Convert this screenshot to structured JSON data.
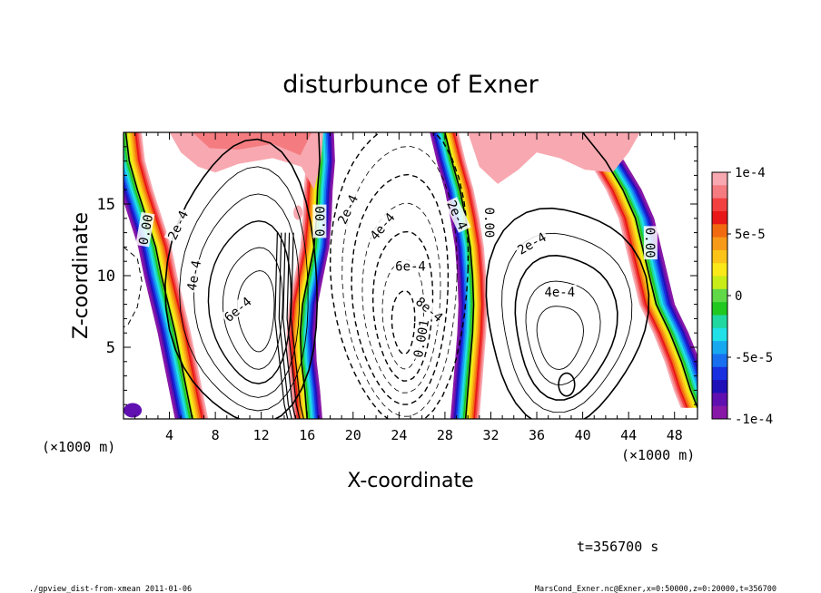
{
  "chart_data": {
    "type": "contour",
    "title": "disturbunce of Exner",
    "xlabel": "X-coordinate",
    "ylabel": "Z-coordinate",
    "x_unit_left": "(×1000 m)",
    "x_unit_right": "(×1000 m)",
    "xlim": [
      0,
      50
    ],
    "ylim": [
      0,
      20
    ],
    "x_ticks": [
      4,
      8,
      12,
      16,
      20,
      24,
      28,
      32,
      36,
      40,
      44,
      48
    ],
    "y_ticks": [
      5,
      10,
      15
    ],
    "colorbar": {
      "min": -0.0001,
      "max": 0.0001,
      "labels": [
        "1e-4",
        "5e-5",
        "0",
        "-5e-5",
        "-1e-4"
      ],
      "colors": [
        "#f8a8b0",
        "#f47c80",
        "#f24040",
        "#e81818",
        "#f26a10",
        "#f79a18",
        "#fcc418",
        "#fae818",
        "#c8ec18",
        "#60d848",
        "#20c820",
        "#20d8a0",
        "#20e0e8",
        "#18a8f0",
        "#1870f0",
        "#1830e0",
        "#2010b8",
        "#6010b0",
        "#8818a8"
      ]
    },
    "contour_labels": [
      {
        "text": "0.00",
        "x": 2.0,
        "y": 13.2,
        "rot": -80
      },
      {
        "text": "2e-4",
        "x": 4.8,
        "y": 13.5,
        "rot": -65
      },
      {
        "text": "4e-4",
        "x": 6.2,
        "y": 10.0,
        "rot": -80
      },
      {
        "text": "6e-4",
        "x": 10.0,
        "y": 7.6,
        "rot": -40
      },
      {
        "text": "0.00",
        "x": 17.2,
        "y": 13.8,
        "rot": -90
      },
      {
        "text": "2e-4",
        "x": 19.6,
        "y": 14.6,
        "rot": -65
      },
      {
        "text": "4e-4",
        "x": 22.6,
        "y": 13.4,
        "rot": -50
      },
      {
        "text": "6e-4",
        "x": 25.0,
        "y": 10.6,
        "rot": 0
      },
      {
        "text": "8e-4",
        "x": 26.6,
        "y": 7.6,
        "rot": 40
      },
      {
        "text": "0.001",
        "x": 26.0,
        "y": 5.6,
        "rot": -80
      },
      {
        "text": "2e-4",
        "x": 29.0,
        "y": 14.2,
        "rot": 65
      },
      {
        "text": "0.00",
        "x": 31.8,
        "y": 13.7,
        "rot": 90
      },
      {
        "text": "2e-4",
        "x": 35.6,
        "y": 12.2,
        "rot": -30
      },
      {
        "text": "4e-4",
        "x": 38.0,
        "y": 8.8,
        "rot": 0
      },
      {
        "text": "0.00",
        "x": 45.8,
        "y": 12.3,
        "rot": 90
      }
    ],
    "time_stamp": "t=356700 s"
  },
  "footer": {
    "left": "./gpview_dist-from-xmean   2011-01-06",
    "right": "MarsCond_Exner.nc@Exner,x=0:50000,z=0:20000,t=356700"
  }
}
